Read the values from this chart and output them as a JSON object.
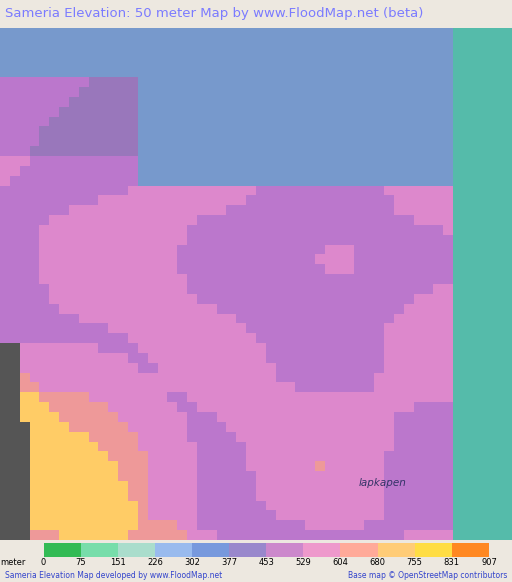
{
  "title": "Sameria Elevation: 50 meter Map by www.FloodMap.net (beta)",
  "title_color": "#7b7bff",
  "title_fontsize": 9.5,
  "background_header": "#ede8e0",
  "colorbar_values": [
    0,
    75,
    151,
    226,
    302,
    377,
    453,
    529,
    604,
    680,
    755,
    831,
    907
  ],
  "colorbar_colors": [
    "#33bb55",
    "#77ddaa",
    "#99ccee",
    "#7799dd",
    "#9977cc",
    "#cc77cc",
    "#ee99bb",
    "#ffbb99",
    "#ffdd88",
    "#ffcc44",
    "#ff8800",
    "#ff4400",
    "#dd1100"
  ],
  "footer_text_left": "Sameria Elevation Map developed by www.FloodMap.net",
  "footer_text_right": "Base map © OpenStreetMap contributors",
  "label_lapkapen": "lapkapen",
  "map_colors": {
    "ocean_blue": "#7799cc",
    "ocean_teal": "#66ccbb",
    "purple_high": "#aa77cc",
    "pink_med": "#dd99cc",
    "pink_light": "#ee99bb",
    "orange_warm": "#ffaa66",
    "yellow_hot": "#ffee66",
    "red_hot": "#ff4444",
    "gray_dark": "#555555",
    "green_low": "#33bb55"
  }
}
